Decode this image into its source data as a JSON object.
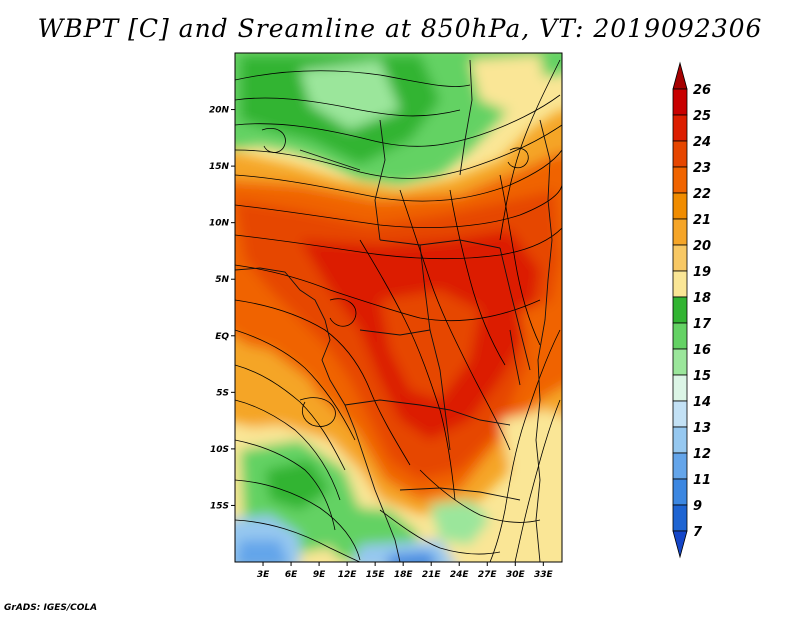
{
  "title": "WBPT [C] and Sreamline at 850hPa, VT: 2019092306",
  "footer": "GrADS: IGES/COLA",
  "map": {
    "lat_labels": [
      "20N",
      "15N",
      "10N",
      "5N",
      "EQ",
      "5S",
      "10S",
      "15S"
    ],
    "lat_values": [
      20,
      15,
      10,
      5,
      0,
      -5,
      -10,
      -15
    ],
    "lon_labels": [
      "3E",
      "6E",
      "9E",
      "12E",
      "15E",
      "18E",
      "21E",
      "24E",
      "27E",
      "30E",
      "33E"
    ],
    "lon_values": [
      3,
      6,
      9,
      12,
      15,
      18,
      21,
      24,
      27,
      30,
      33
    ],
    "lat_range": [
      -20,
      25
    ],
    "lon_range": [
      0,
      35
    ]
  },
  "colorbar": {
    "labels": [
      "26",
      "25",
      "24",
      "23",
      "22",
      "21",
      "20",
      "19",
      "18",
      "17",
      "16",
      "15",
      "14",
      "13",
      "12",
      "11",
      "9",
      "7"
    ],
    "colors": [
      "#a50000",
      "#c80000",
      "#dc1e00",
      "#e64600",
      "#f06400",
      "#f08c00",
      "#f5a528",
      "#f8c864",
      "#fae696",
      "#32b432",
      "#64d264",
      "#9be69b",
      "#dcf5e6",
      "#c3e1f5",
      "#96c8f0",
      "#64a5ea",
      "#3c87e1",
      "#1e64d2",
      "#1446c8"
    ]
  }
}
